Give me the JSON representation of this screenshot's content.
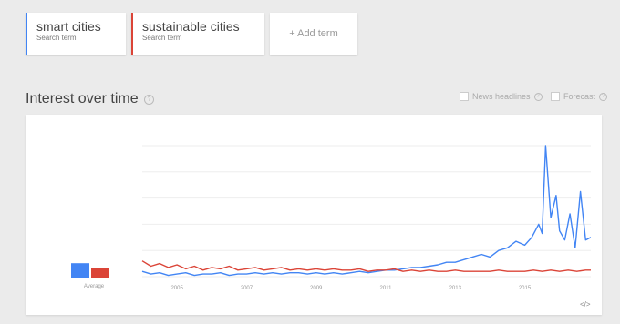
{
  "terms": [
    {
      "title": "smart cities",
      "subtitle": "Search term",
      "color": "#4285f4"
    },
    {
      "title": "sustainable cities",
      "subtitle": "Search term",
      "color": "#db4437"
    }
  ],
  "add_term_label": "+ Add term",
  "section_title": "Interest over time",
  "options": {
    "news_headlines": "News headlines",
    "forecast": "Forecast"
  },
  "average_label": "Average",
  "chart_data": {
    "type": "line",
    "x_ticks": [
      "2005",
      "2007",
      "2009",
      "2011",
      "2013",
      "2015"
    ],
    "ylim": [
      0,
      100
    ],
    "grid": true,
    "averages": [
      {
        "name": "smart cities",
        "value": 12,
        "color": "#4285f4"
      },
      {
        "name": "sustainable cities",
        "value": 8,
        "color": "#db4437"
      }
    ],
    "series": [
      {
        "name": "smart cities",
        "color": "#4285f4",
        "x": [
          2004.0,
          2004.25,
          2004.5,
          2004.75,
          2005.0,
          2005.25,
          2005.5,
          2005.75,
          2006.0,
          2006.25,
          2006.5,
          2006.75,
          2007.0,
          2007.25,
          2007.5,
          2007.75,
          2008.0,
          2008.25,
          2008.5,
          2008.75,
          2009.0,
          2009.25,
          2009.5,
          2009.75,
          2010.0,
          2010.25,
          2010.5,
          2010.75,
          2011.0,
          2011.25,
          2011.5,
          2011.75,
          2012.0,
          2012.25,
          2012.5,
          2012.75,
          2013.0,
          2013.25,
          2013.5,
          2013.75,
          2014.0,
          2014.25,
          2014.5,
          2014.75,
          2015.0,
          2015.2,
          2015.4,
          2015.5,
          2015.6,
          2015.75,
          2015.9,
          2016.0,
          2016.15,
          2016.3,
          2016.45,
          2016.6,
          2016.75,
          2016.9
        ],
        "values": [
          4,
          2,
          3,
          1,
          2,
          3,
          1,
          2,
          2,
          3,
          1,
          2,
          2,
          3,
          2,
          3,
          2,
          3,
          3,
          2,
          3,
          2,
          3,
          2,
          3,
          4,
          3,
          4,
          5,
          5,
          6,
          7,
          7,
          8,
          9,
          11,
          11,
          13,
          15,
          17,
          15,
          20,
          22,
          27,
          24,
          30,
          40,
          33,
          100,
          45,
          62,
          35,
          28,
          48,
          22,
          65,
          28,
          30
        ]
      },
      {
        "name": "sustainable cities",
        "color": "#db4437",
        "x": [
          2004.0,
          2004.25,
          2004.5,
          2004.75,
          2005.0,
          2005.25,
          2005.5,
          2005.75,
          2006.0,
          2006.25,
          2006.5,
          2006.75,
          2007.0,
          2007.25,
          2007.5,
          2007.75,
          2008.0,
          2008.25,
          2008.5,
          2008.75,
          2009.0,
          2009.25,
          2009.5,
          2009.75,
          2010.0,
          2010.25,
          2010.5,
          2010.75,
          2011.0,
          2011.25,
          2011.5,
          2011.75,
          2012.0,
          2012.25,
          2012.5,
          2012.75,
          2013.0,
          2013.25,
          2013.5,
          2013.75,
          2014.0,
          2014.25,
          2014.5,
          2014.75,
          2015.0,
          2015.25,
          2015.5,
          2015.75,
          2016.0,
          2016.25,
          2016.5,
          2016.75,
          2016.9
        ],
        "values": [
          12,
          8,
          10,
          7,
          9,
          6,
          8,
          5,
          7,
          6,
          8,
          5,
          6,
          7,
          5,
          6,
          7,
          5,
          6,
          5,
          6,
          5,
          6,
          5,
          5,
          6,
          4,
          5,
          5,
          6,
          4,
          5,
          4,
          5,
          4,
          4,
          5,
          4,
          4,
          4,
          4,
          5,
          4,
          4,
          4,
          5,
          4,
          5,
          4,
          5,
          4,
          5,
          5
        ]
      }
    ]
  }
}
